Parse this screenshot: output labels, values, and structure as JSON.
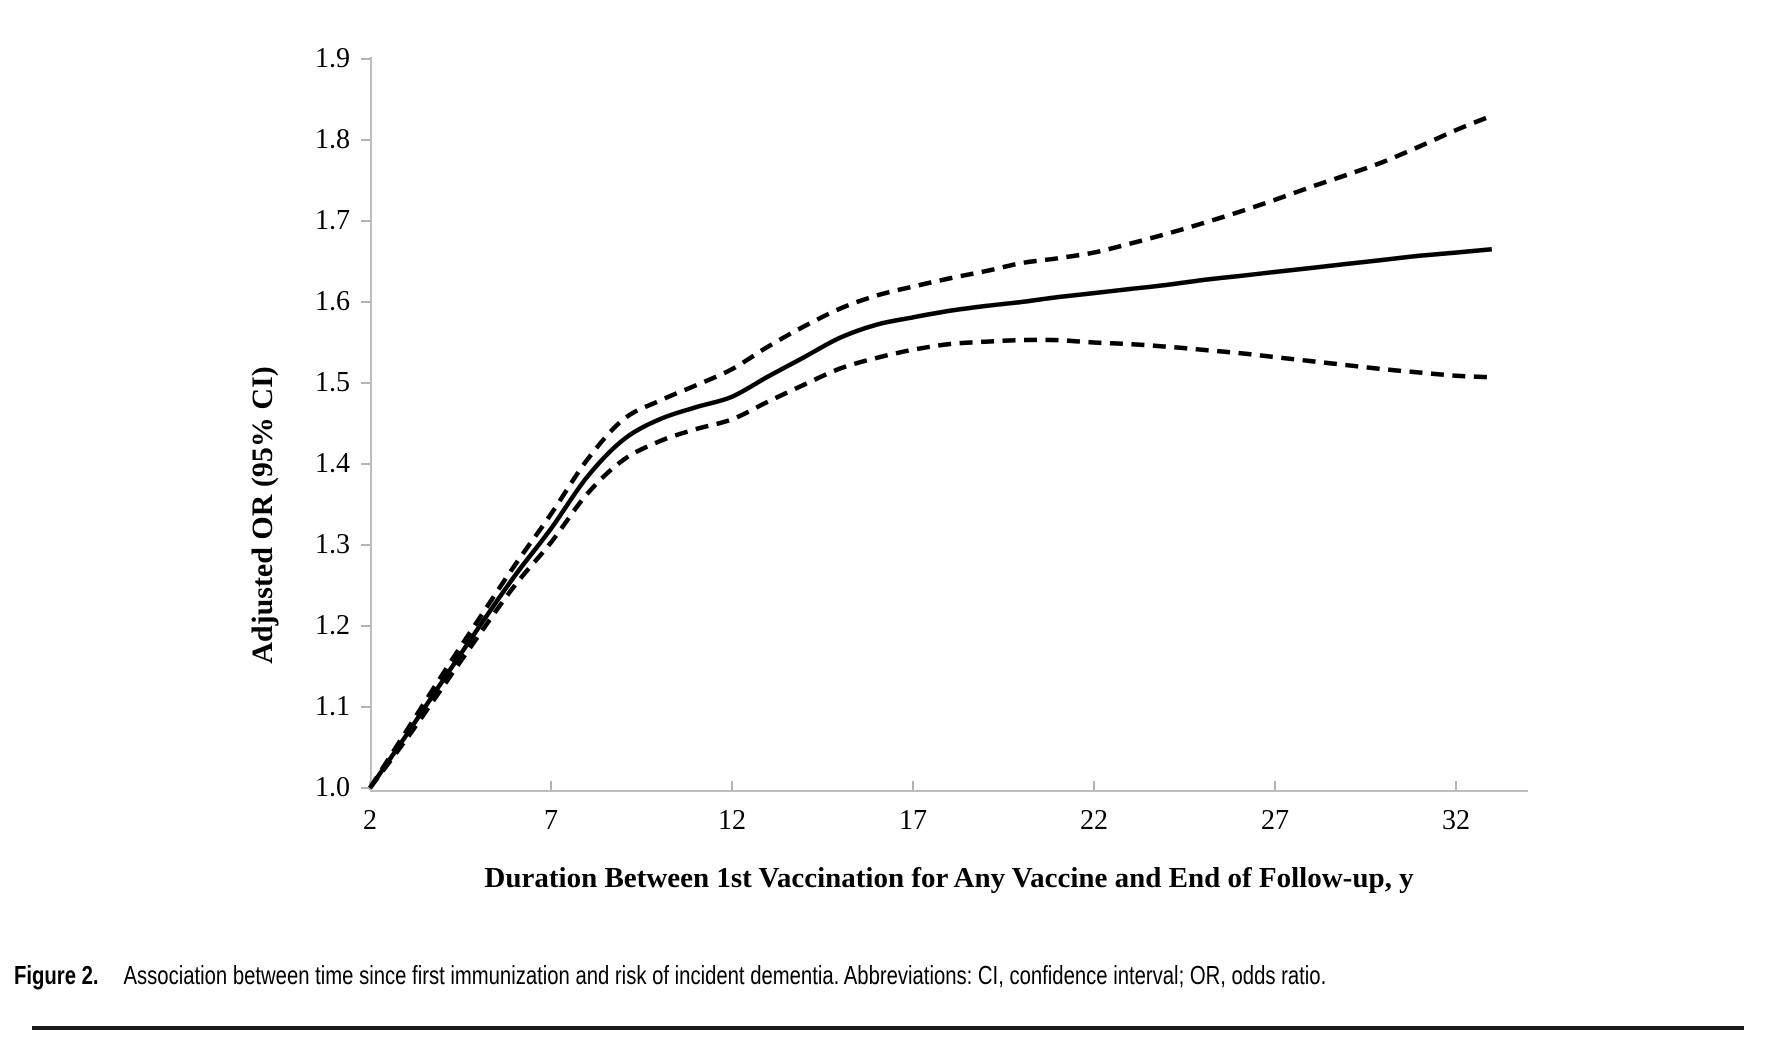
{
  "figure": {
    "caption_label": "Figure 2.",
    "caption_text": "Association between time since first immunization and risk of incident dementia. Abbreviations: CI, confidence interval; OR, odds ratio."
  },
  "chart_data": {
    "type": "line",
    "title": "",
    "xlabel": "Duration Between 1st Vaccination for Any Vaccine and End of Follow-up, y",
    "ylabel": "Adjusted OR (95% CI)",
    "xlim": [
      2,
      34
    ],
    "ylim": [
      1.0,
      1.9
    ],
    "x_ticks": [
      2,
      7,
      12,
      17,
      22,
      27,
      32
    ],
    "y_ticks": [
      1.0,
      1.1,
      1.2,
      1.3,
      1.4,
      1.5,
      1.6,
      1.7,
      1.8,
      1.9
    ],
    "grid": false,
    "legend_position": "none",
    "axis_color": "#bdbdbd",
    "line_color": "#000000",
    "x": [
      2,
      3,
      4,
      5,
      6,
      7,
      8,
      9,
      10,
      11,
      12,
      13,
      14,
      15,
      16,
      17,
      18,
      19,
      20,
      21,
      22,
      23,
      24,
      25,
      26,
      27,
      28,
      29,
      30,
      31,
      32,
      33
    ],
    "series": [
      {
        "name": "Adjusted OR",
        "style": "solid",
        "values": [
          1.0,
          1.065,
          1.132,
          1.198,
          1.262,
          1.32,
          1.384,
          1.43,
          1.455,
          1.47,
          1.483,
          1.508,
          1.532,
          1.556,
          1.572,
          1.581,
          1.589,
          1.595,
          1.6,
          1.606,
          1.611,
          1.616,
          1.621,
          1.627,
          1.632,
          1.637,
          1.642,
          1.647,
          1.652,
          1.657,
          1.661,
          1.665
        ]
      },
      {
        "name": "Upper 95% CI bound",
        "style": "dashed",
        "values": [
          1.0,
          1.07,
          1.14,
          1.208,
          1.275,
          1.338,
          1.405,
          1.455,
          1.478,
          1.497,
          1.517,
          1.545,
          1.57,
          1.592,
          1.608,
          1.619,
          1.629,
          1.638,
          1.648,
          1.654,
          1.661,
          1.672,
          1.684,
          1.697,
          1.711,
          1.726,
          1.742,
          1.757,
          1.773,
          1.792,
          1.812,
          1.83
        ]
      },
      {
        "name": "Lower 95% CI bound",
        "style": "dashed",
        "values": [
          1.0,
          1.06,
          1.124,
          1.188,
          1.25,
          1.303,
          1.363,
          1.405,
          1.428,
          1.443,
          1.455,
          1.477,
          1.498,
          1.518,
          1.531,
          1.541,
          1.548,
          1.551,
          1.553,
          1.553,
          1.55,
          1.548,
          1.545,
          1.541,
          1.537,
          1.532,
          1.527,
          1.522,
          1.517,
          1.513,
          1.509,
          1.507
        ]
      }
    ]
  }
}
